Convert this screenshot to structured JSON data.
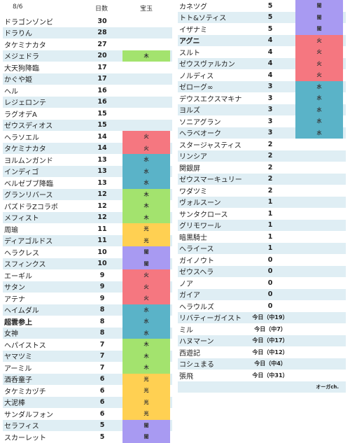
{
  "header": {
    "date": "8/6",
    "days_label": "日数",
    "gem_label": "宝玉"
  },
  "colors": {
    "木": "#a3e36e",
    "火": "#f57780",
    "水": "#5ab3c8",
    "光": "#ffd052",
    "闇": "#a89af2",
    "row_alt": "#dfeef4"
  },
  "left_rows": [
    {
      "name": "ドラゴンゾンビ",
      "days": "30",
      "gem": ""
    },
    {
      "name": "ドラりん",
      "days": "28",
      "gem": ""
    },
    {
      "name": "タケミナカタ",
      "days": "27",
      "gem": ""
    },
    {
      "name": "メジェドラ",
      "days": "20",
      "gem": "木"
    },
    {
      "name": "大天狗降臨",
      "days": "17",
      "gem": ""
    },
    {
      "name": "かぐや姫",
      "days": "17",
      "gem": ""
    },
    {
      "name": "ヘル",
      "days": "16",
      "gem": ""
    },
    {
      "name": "レジェロンテ",
      "days": "16",
      "gem": ""
    },
    {
      "name": "ラグオデA",
      "days": "15",
      "gem": ""
    },
    {
      "name": "ゼウスディオス",
      "days": "15",
      "gem": ""
    },
    {
      "name": "ヘラソエル",
      "days": "14",
      "gem": "火"
    },
    {
      "name": "タケミナカタ",
      "days": "14",
      "gem": "火"
    },
    {
      "name": "ヨルムンガンド",
      "days": "13",
      "gem": "水"
    },
    {
      "name": "インディゴ",
      "days": "13",
      "gem": "水"
    },
    {
      "name": "ベルゼブブ降臨",
      "days": "13",
      "gem": "水"
    },
    {
      "name": "グランリバース",
      "days": "12",
      "gem": "木"
    },
    {
      "name": "パズドラZコラボ",
      "days": "12",
      "gem": "木"
    },
    {
      "name": "メフィスト",
      "days": "12",
      "gem": "木"
    },
    {
      "name": "周瑜",
      "days": "11",
      "gem": "光"
    },
    {
      "name": "ディアゴルドス",
      "days": "11",
      "gem": "光"
    },
    {
      "name": "ヘラクレス",
      "days": "10",
      "gem": "闇"
    },
    {
      "name": "スフィンクス",
      "days": "10",
      "gem": "闇"
    },
    {
      "name": "エーギル",
      "days": "9",
      "gem": "火"
    },
    {
      "name": "サタン",
      "days": "9",
      "gem": "火"
    },
    {
      "name": "アテナ",
      "days": "9",
      "gem": "火"
    },
    {
      "name": "ヘイムダル",
      "days": "8",
      "gem": "水"
    },
    {
      "name": "超雲参上",
      "days": "8",
      "gem": "水",
      "bold": true
    },
    {
      "name": "女神",
      "days": "8",
      "gem": "水"
    },
    {
      "name": "ヘパイストス",
      "days": "7",
      "gem": "木"
    },
    {
      "name": "ヤマツミ",
      "days": "7",
      "gem": "木"
    },
    {
      "name": "アーミル",
      "days": "7",
      "gem": "木"
    },
    {
      "name": "酒呑童子",
      "days": "6",
      "gem": "光"
    },
    {
      "name": "タケミカヅチ",
      "days": "6",
      "gem": "光"
    },
    {
      "name": "大泥棒",
      "days": "6",
      "gem": "光"
    },
    {
      "name": "サンダルフォン",
      "days": "6",
      "gem": "光"
    },
    {
      "name": "セラフィス",
      "days": "5",
      "gem": "闇"
    },
    {
      "name": "スカーレット",
      "days": "5",
      "gem": "闇"
    }
  ],
  "right_rows": [
    {
      "name": "カネツグ",
      "days": "5",
      "gem": "闇"
    },
    {
      "name": "トト&ソティス",
      "days": "5",
      "gem": "闇"
    },
    {
      "name": "イザナミ",
      "days": "5",
      "gem": "闇"
    },
    {
      "name": "アグニ",
      "days": "4",
      "gem": "火",
      "bold": true
    },
    {
      "name": "スルト",
      "days": "4",
      "gem": "火"
    },
    {
      "name": "ゼウスヴァルカン",
      "days": "4",
      "gem": "火"
    },
    {
      "name": "ノルディス",
      "days": "4",
      "gem": "火"
    },
    {
      "name": "ゼローグ∞",
      "days": "3",
      "gem": "水"
    },
    {
      "name": "デウスエクスマキナ",
      "days": "3",
      "gem": "水"
    },
    {
      "name": "ヨルズ",
      "days": "3",
      "gem": "水"
    },
    {
      "name": "ソニアグラン",
      "days": "3",
      "gem": "水"
    },
    {
      "name": "ヘラベオーク",
      "days": "3",
      "gem": "水"
    },
    {
      "name": "スタージャスティス",
      "days": "2",
      "gem": ""
    },
    {
      "name": "リンシア",
      "days": "2",
      "gem": ""
    },
    {
      "name": "関銀屏",
      "days": "2",
      "gem": ""
    },
    {
      "name": "ゼウスマーキュリー",
      "days": "2",
      "gem": ""
    },
    {
      "name": "ワダツミ",
      "days": "2",
      "gem": ""
    },
    {
      "name": "ヴォルスーン",
      "days": "1",
      "gem": ""
    },
    {
      "name": "サンタクロース",
      "days": "1",
      "gem": ""
    },
    {
      "name": "グリモワール",
      "days": "1",
      "gem": ""
    },
    {
      "name": "暗黒騎士",
      "days": "1",
      "gem": ""
    },
    {
      "name": "ヘライース",
      "days": "1",
      "gem": ""
    },
    {
      "name": "ガイノウト",
      "days": "0",
      "gem": ""
    },
    {
      "name": "ゼウスヘラ",
      "days": "0",
      "gem": ""
    },
    {
      "name": "ノア",
      "days": "0",
      "gem": ""
    },
    {
      "name": "ガイア",
      "days": "0",
      "gem": ""
    },
    {
      "name": "ヘラウルズ",
      "days": "0",
      "gem": ""
    },
    {
      "name": "リバティーガイスト",
      "days": "今日（中19）",
      "gem": ""
    },
    {
      "name": "ミル",
      "days": "今日（中7）",
      "gem": ""
    },
    {
      "name": "ハヌマーン",
      "days": "今日（中17）",
      "gem": ""
    },
    {
      "name": "西遊記",
      "days": "今日（中12）",
      "gem": ""
    },
    {
      "name": "コシュまる",
      "days": "今日（中4）",
      "gem": ""
    },
    {
      "name": "張飛",
      "days": "今日（中31）",
      "gem": ""
    }
  ],
  "credit": "オーガch."
}
